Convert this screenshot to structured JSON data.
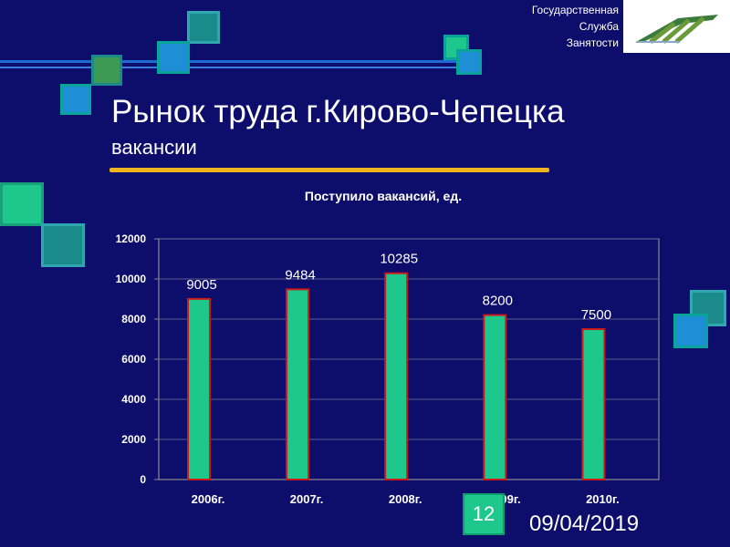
{
  "organization": {
    "line1": "Государственная",
    "line2": "Служба",
    "line3": "Занятости"
  },
  "slide": {
    "title": "Рынок труда г.Кирово-Чепецка",
    "subtitle": "вакансии",
    "number": "12",
    "date": "09/04/2019"
  },
  "colors": {
    "background": "#0d0d6b",
    "bar_fill": "#1ec88c",
    "bar_border": "#cc1a1a",
    "plot_background": "#0d0d6b",
    "accent_line": "#f0b41e"
  },
  "chart_data": {
    "type": "bar",
    "title": "Поступило вакансий, ед.",
    "categories": [
      "2006г.",
      "2007г.",
      "2008г.",
      "2009г.",
      "2010г."
    ],
    "values": [
      9005,
      9484,
      10285,
      8200,
      7500
    ],
    "data_labels": [
      "9005",
      "9484",
      "10285",
      "8200",
      "7500"
    ],
    "y_ticks": [
      0,
      2000,
      4000,
      6000,
      8000,
      10000,
      12000
    ],
    "ylim": [
      0,
      12000
    ],
    "xlabel": "",
    "ylabel": "",
    "grid": true,
    "legend": "none"
  }
}
